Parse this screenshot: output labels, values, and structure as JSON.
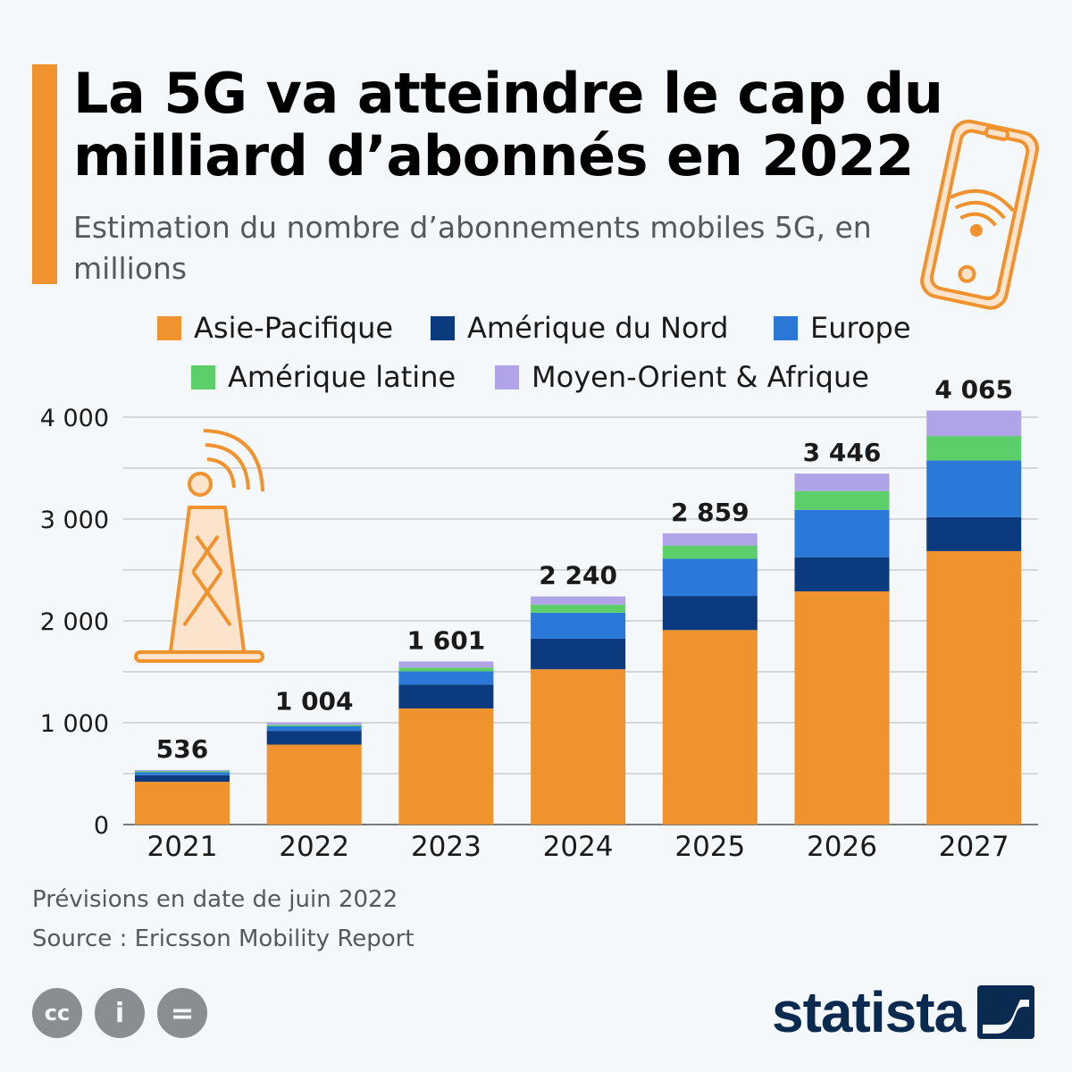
{
  "header": {
    "title": "La 5G va atteindre le cap du milliard d’abonnés en 2022",
    "subtitle": "Estimation du nombre d’abonnements mobiles 5G, en millions"
  },
  "colors": {
    "accent": "#f0922d",
    "asia_pacific": "#f0922d",
    "north_america": "#0b3a7e",
    "europe": "#2a79d8",
    "latin_america": "#5ccf6b",
    "mea": "#b0a3e8",
    "grid": "#bfc3c7",
    "brand": "#0b2a4f"
  },
  "icons": {
    "decor_phone": "smartphone-wifi-icon",
    "decor_tower": "antenna-tower-icon",
    "license": [
      "cc-icon",
      "by-icon",
      "nd-icon"
    ],
    "brand": "statista-logo-icon"
  },
  "chart_data": {
    "type": "bar",
    "stacked": true,
    "categories": [
      "2021",
      "2022",
      "2023",
      "2024",
      "2025",
      "2026",
      "2027"
    ],
    "series": [
      {
        "name": "Asie-Pacifique",
        "color": "#f0922d",
        "values": [
          420,
          785,
          1140,
          1525,
          1910,
          2290,
          2685
        ]
      },
      {
        "name": "Amérique du Nord",
        "color": "#0b3a7e",
        "values": [
          65,
          135,
          235,
          300,
          335,
          335,
          335
        ]
      },
      {
        "name": "Europe",
        "color": "#2a79d8",
        "values": [
          30,
          45,
          130,
          255,
          365,
          465,
          555
        ]
      },
      {
        "name": "Amérique latine",
        "color": "#5ccf6b",
        "values": [
          11,
          14,
          36,
          80,
          130,
          185,
          240
        ]
      },
      {
        "name": "Moyen-Orient & Afrique",
        "color": "#b0a3e8",
        "values": [
          10,
          25,
          60,
          80,
          119,
          171,
          250
        ]
      }
    ],
    "totals": [
      536,
      1004,
      1601,
      2240,
      2859,
      3446,
      4065
    ],
    "total_labels": [
      "536",
      "1 004",
      "1 601",
      "2 240",
      "2 859",
      "3 446",
      "4 065"
    ],
    "y_ticks": [
      0,
      1000,
      2000,
      3000,
      4000
    ],
    "y_tick_labels": [
      "0",
      "1 000",
      "2 000",
      "3 000",
      "4 000"
    ],
    "ylim": [
      0,
      4000
    ],
    "grid": true,
    "legend_position": "top"
  },
  "footer": {
    "note": "Prévisions en date de juin 2022",
    "source": "Source : Ericsson Mobility Report",
    "brand": "statista"
  },
  "license": {
    "cc": "cc",
    "by": "i",
    "nd": "="
  }
}
